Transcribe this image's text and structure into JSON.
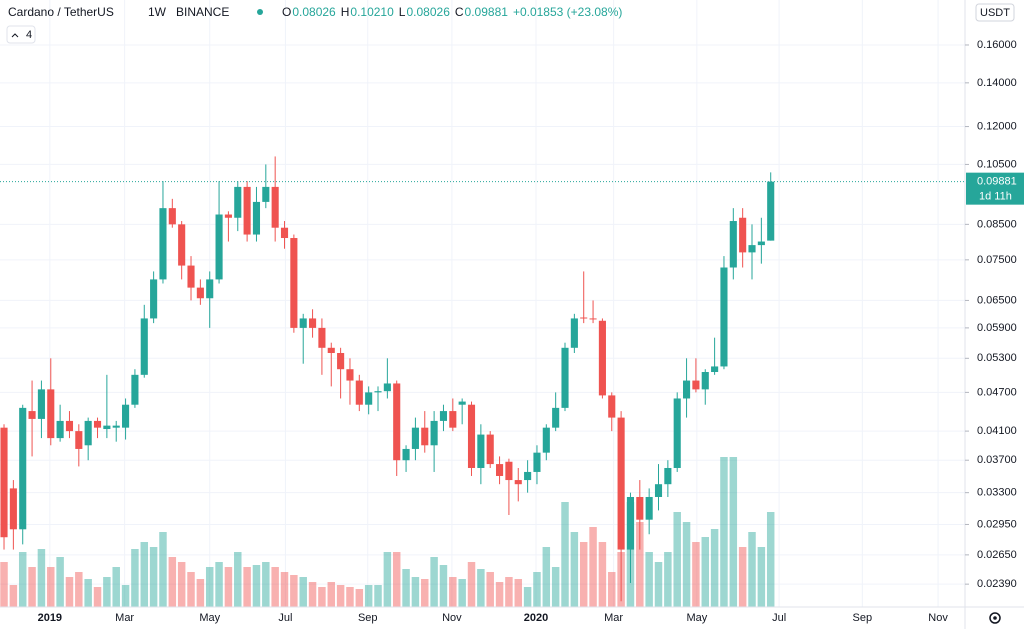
{
  "header": {
    "symbol": "Cardano / TetherUS",
    "interval": "1W",
    "exchange": "BINANCE",
    "ohlc": [
      {
        "key": "O",
        "value": "0.08026"
      },
      {
        "key": "H",
        "value": "0.10210"
      },
      {
        "key": "L",
        "value": "0.08026"
      },
      {
        "key": "C",
        "value": "0.09881"
      }
    ],
    "change": "+0.01853 (+23.08%)",
    "indicators": "4",
    "currency": "USDT",
    "countdown": "1d 11h"
  },
  "chart_data": {
    "type": "candlestick",
    "log_scale": true,
    "grid": true,
    "up_color": "#26a69a",
    "down_color": "#ef5350",
    "last_price_label": "0.09881",
    "xlim": [
      -0.43,
      102.78
    ],
    "xticks": [
      {
        "value": 4.9,
        "label": "2019"
      },
      {
        "value": 12.9,
        "label": "Mar"
      },
      {
        "value": 22.0,
        "label": "May"
      },
      {
        "value": 30.1,
        "label": "Jul"
      },
      {
        "value": 38.9,
        "label": "Sep"
      },
      {
        "value": 47.9,
        "label": "Nov"
      },
      {
        "value": 56.9,
        "label": "2020"
      },
      {
        "value": 65.2,
        "label": "Mar"
      },
      {
        "value": 74.1,
        "label": "May"
      },
      {
        "value": 82.9,
        "label": "Jul"
      },
      {
        "value": 91.8,
        "label": "Sep"
      },
      {
        "value": 99.9,
        "label": "Nov"
      }
    ],
    "ylim": [
      0.02205,
      0.1875
    ],
    "yticks": [
      {
        "value": 0.16,
        "label": "0.16000"
      },
      {
        "value": 0.14,
        "label": "0.14000"
      },
      {
        "value": 0.12,
        "label": "0.12000"
      },
      {
        "value": 0.105,
        "label": "0.10500"
      },
      {
        "value": 0.085,
        "label": "0.08500"
      },
      {
        "value": 0.075,
        "label": "0.07500"
      },
      {
        "value": 0.065,
        "label": "0.06500"
      },
      {
        "value": 0.059,
        "label": "0.05900"
      },
      {
        "value": 0.053,
        "label": "0.05300"
      },
      {
        "value": 0.047,
        "label": "0.04700"
      },
      {
        "value": 0.041,
        "label": "0.04100"
      },
      {
        "value": 0.037,
        "label": "0.03700"
      },
      {
        "value": 0.033,
        "label": "0.03300"
      },
      {
        "value": 0.0295,
        "label": "0.02950"
      },
      {
        "value": 0.0265,
        "label": "0.02650"
      },
      {
        "value": 0.0239,
        "label": "0.02390"
      }
    ],
    "open": [
      0.0415,
      0.0335,
      0.029,
      0.044,
      0.0428,
      0.0475,
      0.04,
      0.0425,
      0.041,
      0.039,
      0.0425,
      0.0413,
      0.0415,
      0.0415,
      0.045,
      0.05,
      0.061,
      0.07,
      0.09,
      0.085,
      0.0735,
      0.068,
      0.0655,
      0.07,
      0.088,
      0.087,
      0.097,
      0.082,
      0.092,
      0.097,
      0.084,
      0.081,
      0.059,
      0.061,
      0.059,
      0.055,
      0.054,
      0.051,
      0.049,
      0.045,
      0.047,
      0.0472,
      0.0485,
      0.037,
      0.0385,
      0.0415,
      0.039,
      0.0425,
      0.044,
      0.045,
      0.045,
      0.036,
      0.0405,
      0.0365,
      0.0368,
      0.0345,
      0.0345,
      0.0355,
      0.038,
      0.0415,
      0.0445,
      0.055,
      0.0612,
      0.061,
      0.0605,
      0.0465,
      0.043,
      0.027,
      0.0325,
      0.03,
      0.0325,
      0.034,
      0.036,
      0.046,
      0.049,
      0.0475,
      0.0505,
      0.0515,
      0.073,
      0.087,
      0.077,
      0.079,
      0.08026
    ],
    "high": [
      0.042,
      0.0345,
      0.045,
      0.049,
      0.049,
      0.053,
      0.045,
      0.044,
      0.042,
      0.043,
      0.043,
      0.05,
      0.0425,
      0.046,
      0.051,
      0.064,
      0.072,
      0.099,
      0.093,
      0.086,
      0.076,
      0.07,
      0.072,
      0.099,
      0.089,
      0.099,
      0.099,
      0.097,
      0.105,
      0.108,
      0.086,
      0.082,
      0.062,
      0.063,
      0.061,
      0.056,
      0.055,
      0.053,
      0.05,
      0.048,
      0.048,
      0.053,
      0.049,
      0.039,
      0.043,
      0.044,
      0.044,
      0.045,
      0.046,
      0.046,
      0.0455,
      0.042,
      0.041,
      0.0375,
      0.0372,
      0.036,
      0.037,
      0.039,
      0.042,
      0.047,
      0.056,
      0.062,
      0.072,
      0.065,
      0.061,
      0.047,
      0.044,
      0.033,
      0.0345,
      0.0335,
      0.0365,
      0.037,
      0.047,
      0.053,
      0.053,
      0.051,
      0.057,
      0.076,
      0.09,
      0.09,
      0.085,
      0.087,
      0.1021
    ],
    "low": [
      0.027,
      0.027,
      0.0275,
      0.0375,
      0.04,
      0.039,
      0.0395,
      0.04,
      0.0362,
      0.037,
      0.04,
      0.04,
      0.0395,
      0.0398,
      0.0445,
      0.0495,
      0.06,
      0.069,
      0.084,
      0.07,
      0.065,
      0.064,
      0.059,
      0.069,
      0.08,
      0.083,
      0.08,
      0.08,
      0.09,
      0.08,
      0.078,
      0.058,
      0.052,
      0.057,
      0.05,
      0.048,
      0.046,
      0.045,
      0.044,
      0.0435,
      0.044,
      0.046,
      0.035,
      0.0355,
      0.037,
      0.038,
      0.0355,
      0.041,
      0.041,
      0.042,
      0.035,
      0.034,
      0.036,
      0.034,
      0.0305,
      0.032,
      0.033,
      0.034,
      0.037,
      0.041,
      0.044,
      0.054,
      0.06,
      0.06,
      0.046,
      0.041,
      0.0225,
      0.024,
      0.027,
      0.0285,
      0.031,
      0.0325,
      0.0355,
      0.043,
      0.047,
      0.045,
      0.05,
      0.051,
      0.07,
      0.073,
      0.07,
      0.074,
      0.08026
    ],
    "close": [
      0.0282,
      0.029,
      0.0445,
      0.0428,
      0.0475,
      0.04,
      0.0425,
      0.041,
      0.0385,
      0.0425,
      0.0415,
      0.0418,
      0.0418,
      0.045,
      0.05,
      0.061,
      0.07,
      0.09,
      0.085,
      0.0735,
      0.068,
      0.0655,
      0.07,
      0.088,
      0.087,
      0.097,
      0.082,
      0.092,
      0.097,
      0.084,
      0.081,
      0.059,
      0.061,
      0.059,
      0.055,
      0.054,
      0.051,
      0.049,
      0.045,
      0.047,
      0.0472,
      0.0485,
      0.037,
      0.0385,
      0.0415,
      0.039,
      0.0425,
      0.044,
      0.0415,
      0.0455,
      0.036,
      0.0405,
      0.0365,
      0.035,
      0.0345,
      0.034,
      0.0355,
      0.038,
      0.0415,
      0.0445,
      0.055,
      0.061,
      0.061,
      0.0608,
      0.0465,
      0.043,
      0.027,
      0.0325,
      0.03,
      0.0325,
      0.034,
      0.036,
      0.046,
      0.049,
      0.0475,
      0.0505,
      0.0515,
      0.073,
      0.086,
      0.077,
      0.079,
      0.08,
      0.09881
    ],
    "volume": [
      45,
      22,
      55,
      40,
      58,
      40,
      50,
      30,
      35,
      28,
      20,
      30,
      40,
      22,
      58,
      65,
      60,
      75,
      50,
      45,
      35,
      28,
      40,
      45,
      40,
      55,
      40,
      42,
      45,
      40,
      35,
      32,
      30,
      25,
      20,
      25,
      22,
      20,
      18,
      22,
      22,
      55,
      55,
      38,
      30,
      28,
      50,
      42,
      30,
      28,
      45,
      38,
      35,
      25,
      30,
      28,
      20,
      35,
      60,
      40,
      105,
      75,
      65,
      80,
      65,
      35,
      55,
      105,
      85,
      55,
      45,
      55,
      95,
      85,
      65,
      70,
      78,
      150,
      150,
      60,
      75,
      60,
      95
    ]
  }
}
